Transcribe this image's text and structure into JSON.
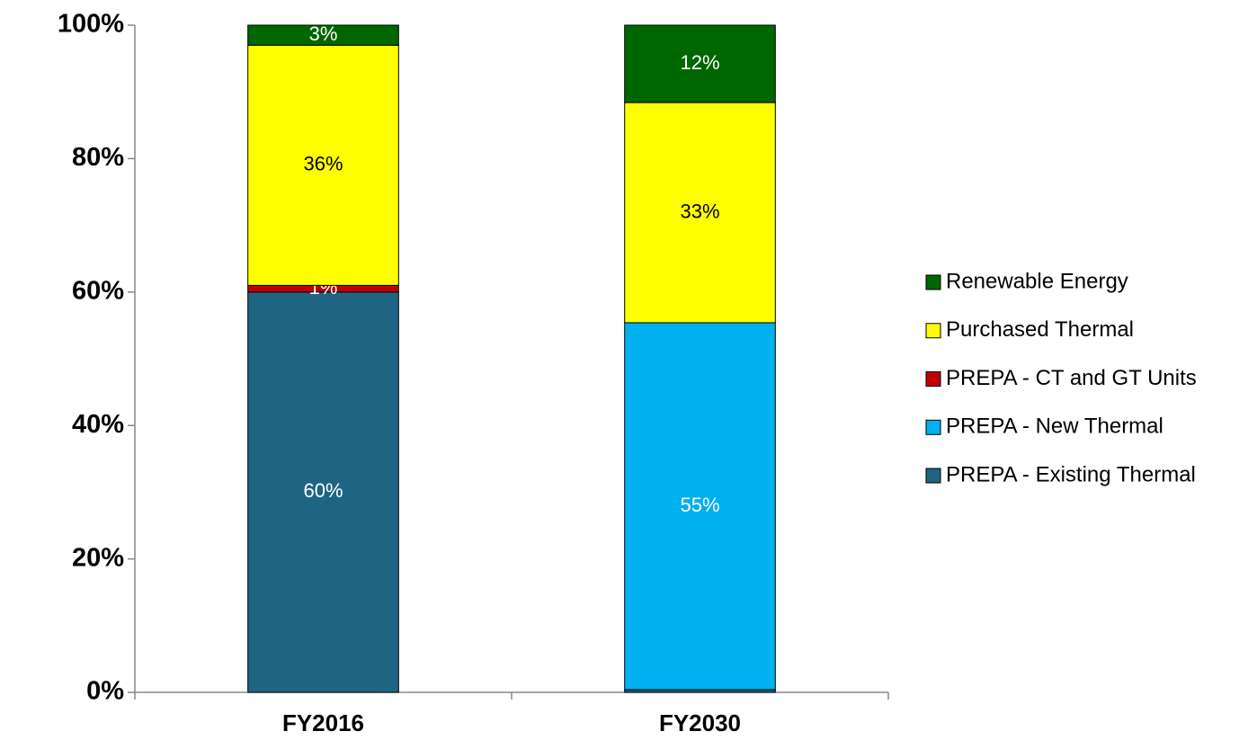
{
  "chart_data": {
    "type": "stacked_bar",
    "categories": [
      "FY2016",
      "FY2030"
    ],
    "series": [
      {
        "name": "PREPA - Existing Thermal",
        "color": "#1f6583",
        "label_color": "#ffffff",
        "values": [
          60,
          0.4
        ],
        "value_labels": [
          "60%",
          null
        ]
      },
      {
        "name": "PREPA - New Thermal",
        "color": "#00b0f0",
        "label_color": "#ffffff",
        "values": [
          0,
          55
        ],
        "value_labels": [
          null,
          "55%"
        ]
      },
      {
        "name": "PREPA - CT and GT Units",
        "color": "#c00000",
        "label_color": "#ffffff",
        "values": [
          1,
          0
        ],
        "value_labels": [
          "1%",
          null
        ]
      },
      {
        "name": "Purchased Thermal",
        "color": "#ffff00",
        "label_color": "#000000",
        "values": [
          36,
          33
        ],
        "value_labels": [
          "36%",
          "33%"
        ]
      },
      {
        "name": "Renewable Energy",
        "color": "#006600",
        "label_color": "#ffffff",
        "values": [
          3,
          11.6
        ],
        "value_labels": [
          "3%",
          "12%"
        ]
      }
    ],
    "ylim": [
      0,
      100
    ],
    "yticks": [
      {
        "value": 0,
        "label": "0%"
      },
      {
        "value": 20,
        "label": "20%"
      },
      {
        "value": 40,
        "label": "40%"
      },
      {
        "value": 60,
        "label": "60%"
      },
      {
        "value": 80,
        "label": "80%"
      },
      {
        "value": 100,
        "label": "100%"
      }
    ],
    "legend": "right"
  }
}
